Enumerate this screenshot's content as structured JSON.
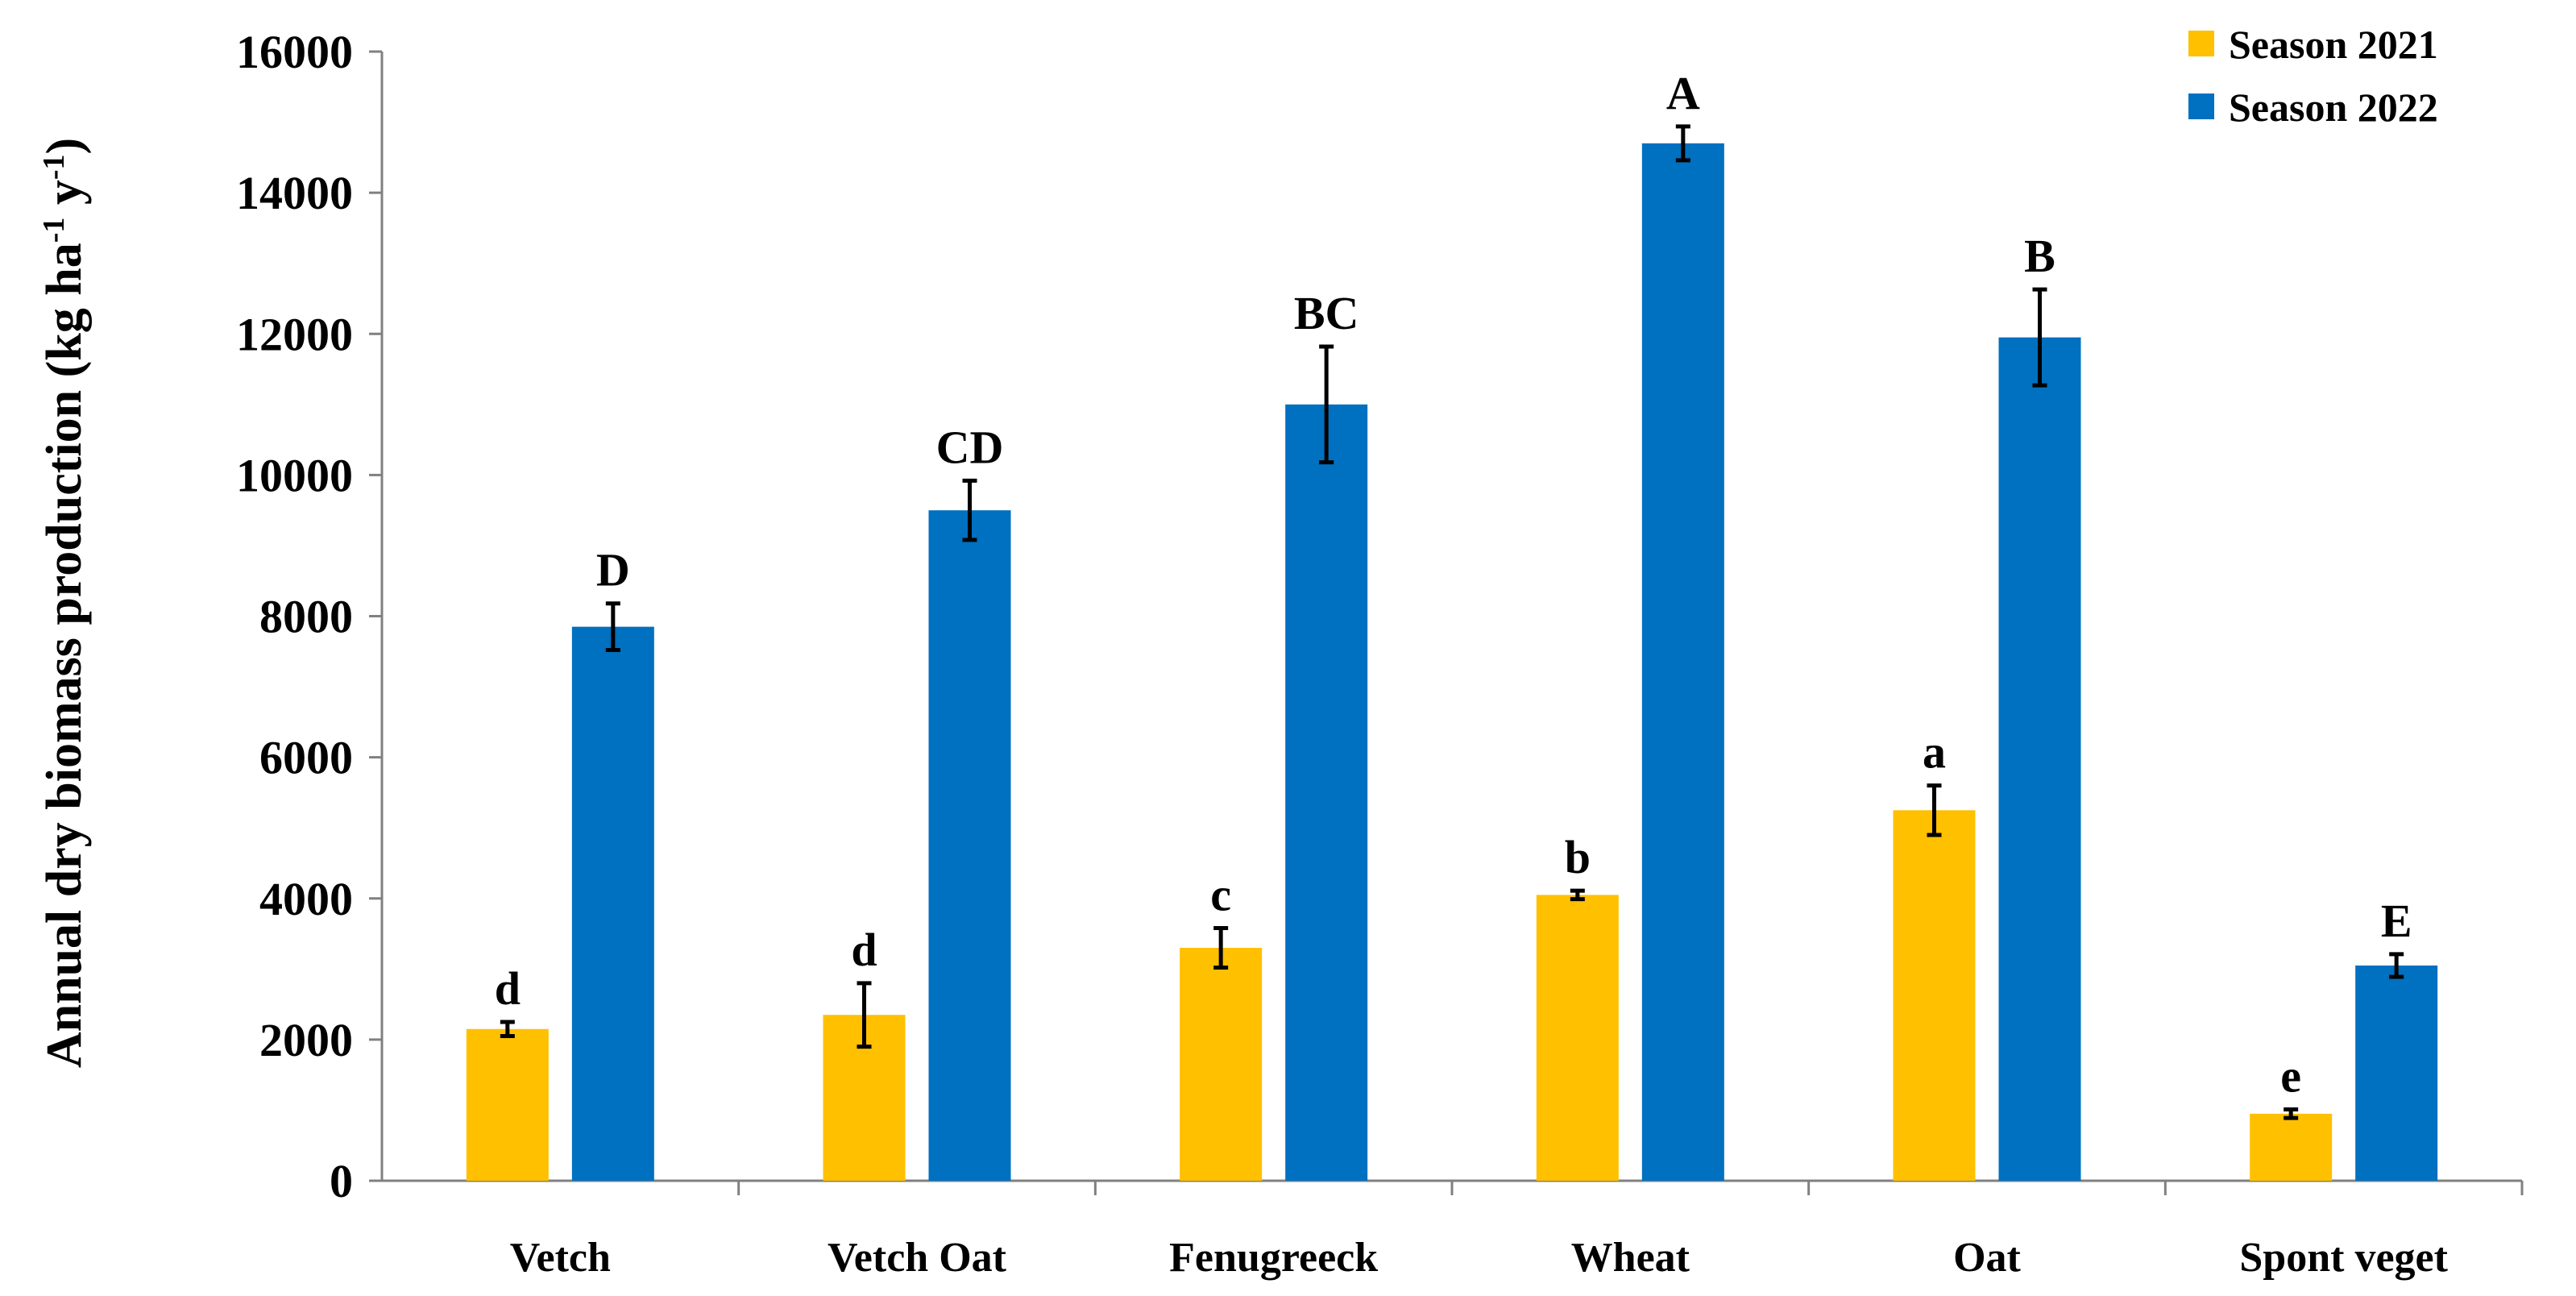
{
  "chart_data": {
    "type": "bar",
    "title": "",
    "xlabel": "",
    "ylabel": "Annual dry biomass production",
    "ylabel_units": {
      "open": "(kg ha",
      "sup1": "-1",
      "mid": " y",
      "sup2": "-1",
      "close": ")"
    },
    "ylim": [
      0,
      16000
    ],
    "yticks": [
      0,
      2000,
      4000,
      6000,
      8000,
      10000,
      12000,
      14000,
      16000
    ],
    "ytick_labels": [
      "0",
      "2000",
      "4000",
      "6000",
      "8000",
      "10000",
      "12000",
      "14000",
      "16000"
    ],
    "grid": false,
    "legend_position": "top-right",
    "categories": [
      "Vetch",
      "Vetch Oat",
      "Fenugreeck",
      "Wheat",
      "Oat",
      "Spont veget"
    ],
    "series": [
      {
        "name": "Season 2021",
        "color": "#FFC000",
        "values": [
          2150,
          2350,
          3300,
          4050,
          5250,
          950
        ],
        "errors": [
          100,
          450,
          280,
          60,
          350,
          60
        ],
        "letters": [
          "d",
          "d",
          "c",
          "b",
          "a",
          "e"
        ]
      },
      {
        "name": "Season 2022",
        "color": "#0070C0",
        "values": [
          7850,
          9500,
          11000,
          14700,
          11950,
          3050
        ],
        "errors": [
          330,
          420,
          820,
          240,
          680,
          160
        ],
        "letters": [
          "D",
          "CD",
          "BC",
          "A",
          "B",
          "E"
        ]
      }
    ]
  }
}
